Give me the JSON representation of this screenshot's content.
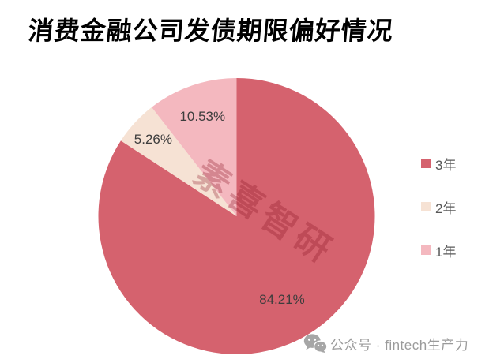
{
  "title": "消费金融公司发债期限偏好情况",
  "watermark": "素喜智研",
  "footer": {
    "icon": "wechat-logo-icon",
    "label": "公众号 · fintech生产力"
  },
  "chart_data": {
    "type": "pie",
    "title": "消费金融公司发债期限偏好情况",
    "categories": [
      "3年",
      "2年",
      "1年"
    ],
    "values": [
      84.21,
      5.26,
      10.53
    ],
    "data_labels": [
      "84.21%",
      "5.26%",
      "10.53%"
    ],
    "colors": [
      "#d5626e",
      "#f6e2d4",
      "#f4b8bf"
    ],
    "start_angle": "12-o-clock",
    "direction": "clockwise",
    "legend_position": "right",
    "legend_entries": [
      "3年",
      "2年",
      "1年"
    ],
    "label_color": "#3d3d3d"
  }
}
